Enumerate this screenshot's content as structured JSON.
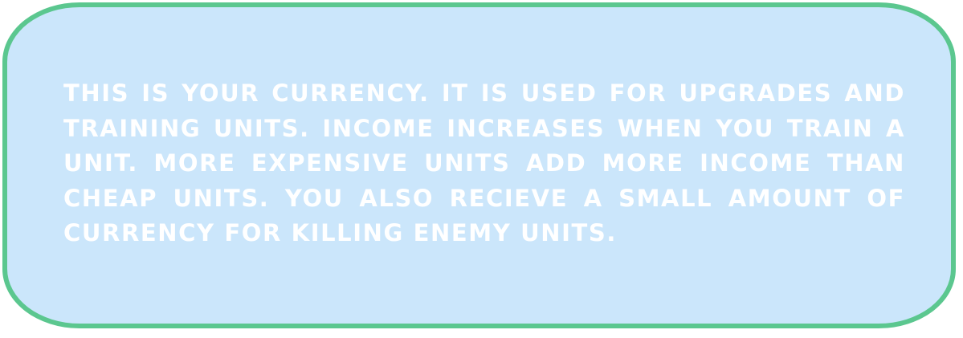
{
  "tooltip": {
    "text": "This is your currency. It is used for upgrades and training units. Income increases when you train a unit.  More expensive units add more income than cheap units. You also recieve a small amount of currency for killing enemy units."
  },
  "colors": {
    "panel_fill": "#cbe6fb",
    "panel_border": "#5bc78f",
    "text": "#ffffff"
  }
}
